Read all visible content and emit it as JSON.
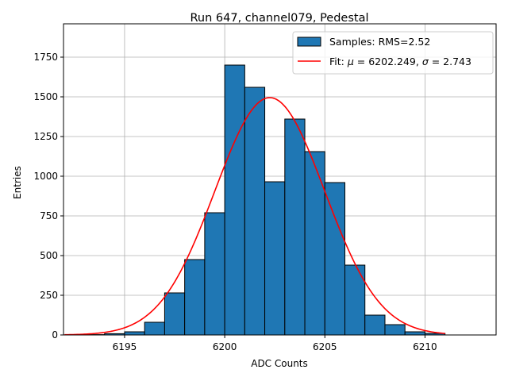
{
  "chart_data": {
    "type": "bar",
    "title": "Run 647, channel079, Pedestal",
    "xlabel": "ADC Counts",
    "ylabel": "Entries",
    "xlim": [
      6191.95,
      6213.55
    ],
    "ylim": [
      0,
      1960
    ],
    "xticks": [
      6195,
      6200,
      6205,
      6210
    ],
    "yticks": [
      0,
      250,
      500,
      750,
      1000,
      1250,
      1500,
      1750
    ],
    "grid": true,
    "legend_position": "top-right",
    "bar_color": "#1f77b4",
    "fit_color": "#ff0000",
    "bins": [
      {
        "x0": 6193,
        "x1": 6194,
        "value": 2
      },
      {
        "x0": 6194,
        "x1": 6195,
        "value": 8
      },
      {
        "x0": 6195,
        "x1": 6196,
        "value": 20
      },
      {
        "x0": 6196,
        "x1": 6197,
        "value": 80
      },
      {
        "x0": 6197,
        "x1": 6198,
        "value": 265
      },
      {
        "x0": 6198,
        "x1": 6199,
        "value": 475
      },
      {
        "x0": 6199,
        "x1": 6200,
        "value": 770
      },
      {
        "x0": 6200,
        "x1": 6201,
        "value": 1700
      },
      {
        "x0": 6201,
        "x1": 6202,
        "value": 1560
      },
      {
        "x0": 6202,
        "x1": 6203,
        "value": 965
      },
      {
        "x0": 6203,
        "x1": 6204,
        "value": 1360
      },
      {
        "x0": 6204,
        "x1": 6205,
        "value": 1155
      },
      {
        "x0": 6205,
        "x1": 6206,
        "value": 960
      },
      {
        "x0": 6206,
        "x1": 6207,
        "value": 440
      },
      {
        "x0": 6207,
        "x1": 6208,
        "value": 125
      },
      {
        "x0": 6208,
        "x1": 6209,
        "value": 65
      },
      {
        "x0": 6209,
        "x1": 6210,
        "value": 20
      },
      {
        "x0": 6210,
        "x1": 6211,
        "value": 10
      }
    ],
    "fit": {
      "mu": 6202.249,
      "sigma": 2.743,
      "amplitude": 1495,
      "x_range": [
        6192,
        6211
      ]
    },
    "legend": {
      "samples_label": "Samples: RMS=2.52",
      "fit_prefix": "Fit: ",
      "fit_mu_symbol": "μ",
      "fit_mu_value": " = 6202.249, ",
      "fit_sigma_symbol": "σ",
      "fit_sigma_value": " = 2.743"
    }
  }
}
